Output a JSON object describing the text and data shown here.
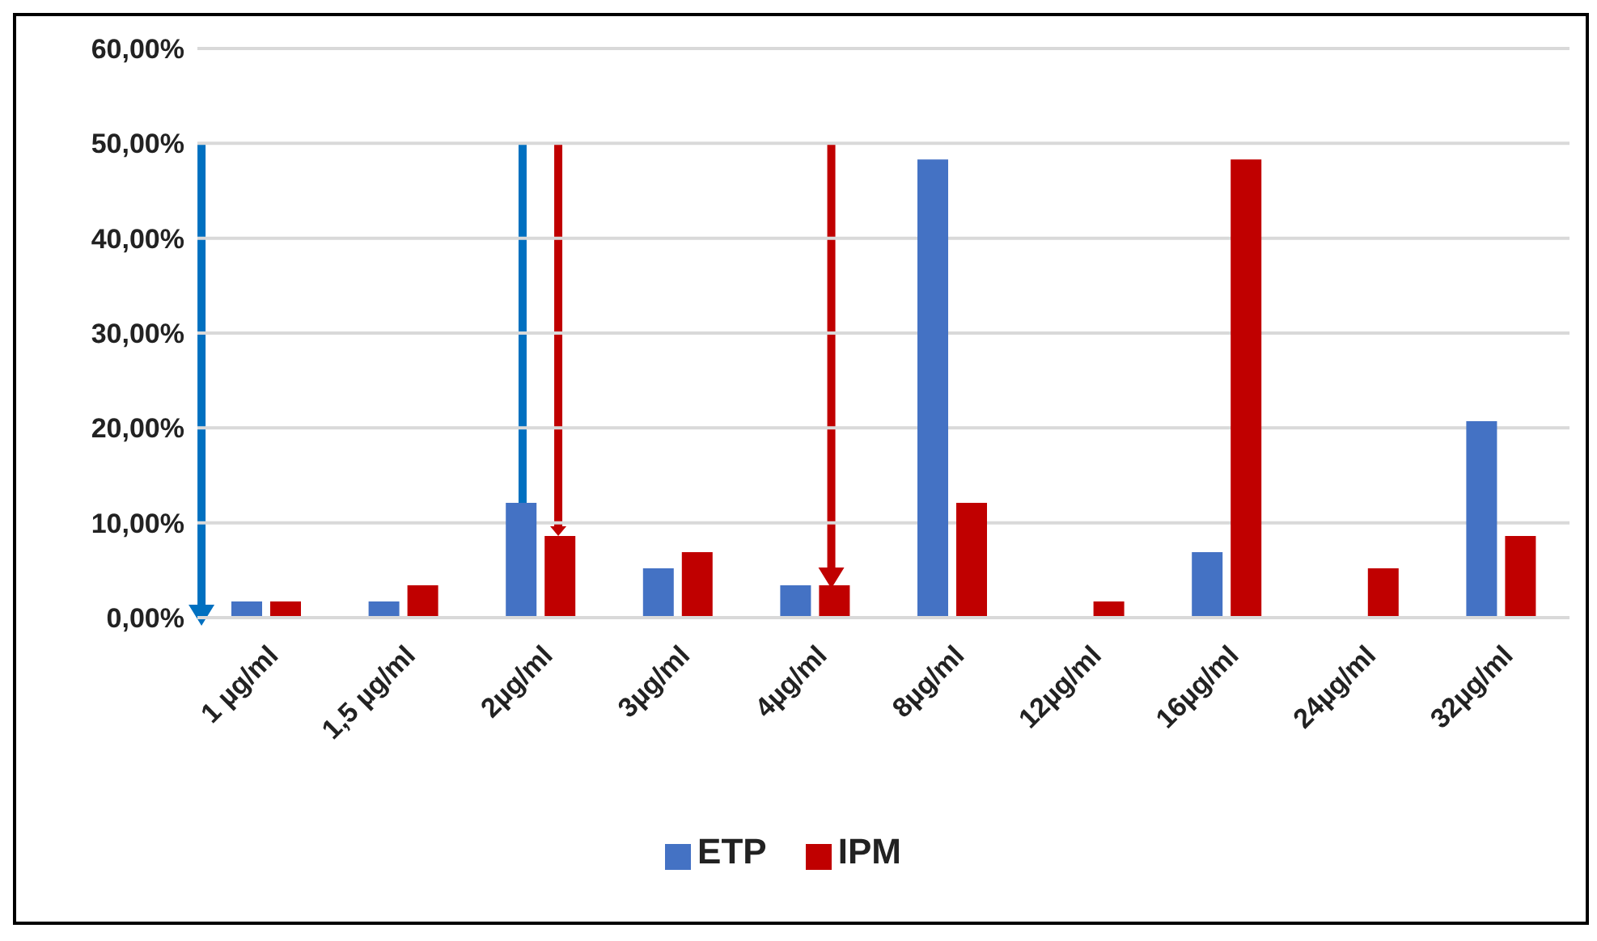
{
  "chart_data": {
    "type": "bar",
    "categories": [
      "1 µg/ml",
      "1,5 µg/ml",
      "2µg/ml",
      "3µg/ml",
      "4µg/ml",
      "8µg/ml",
      "12µg/ml",
      "16µg/ml",
      "24µg/ml",
      "32µg/ml"
    ],
    "series": [
      {
        "name": "ETP",
        "color": "#4472c4",
        "values": [
          1.7,
          1.7,
          12.1,
          5.2,
          3.4,
          48.3,
          0,
          6.9,
          0,
          20.7
        ]
      },
      {
        "name": "IPM",
        "color": "#c00000",
        "values": [
          1.7,
          3.4,
          8.6,
          6.9,
          3.4,
          12.1,
          1.7,
          48.3,
          5.2,
          8.6
        ]
      }
    ],
    "ylim": [
      0,
      60
    ],
    "yticks": [
      {
        "value": 0,
        "label": "0,00%"
      },
      {
        "value": 10,
        "label": "10,00%"
      },
      {
        "value": 20,
        "label": "20,00%"
      },
      {
        "value": 30,
        "label": "30,00%"
      },
      {
        "value": 40,
        "label": "40,00%"
      },
      {
        "value": 50,
        "label": "50,00%"
      },
      {
        "value": 60,
        "label": "60,00%"
      }
    ],
    "grid": "y",
    "legend": "bottom"
  }
}
